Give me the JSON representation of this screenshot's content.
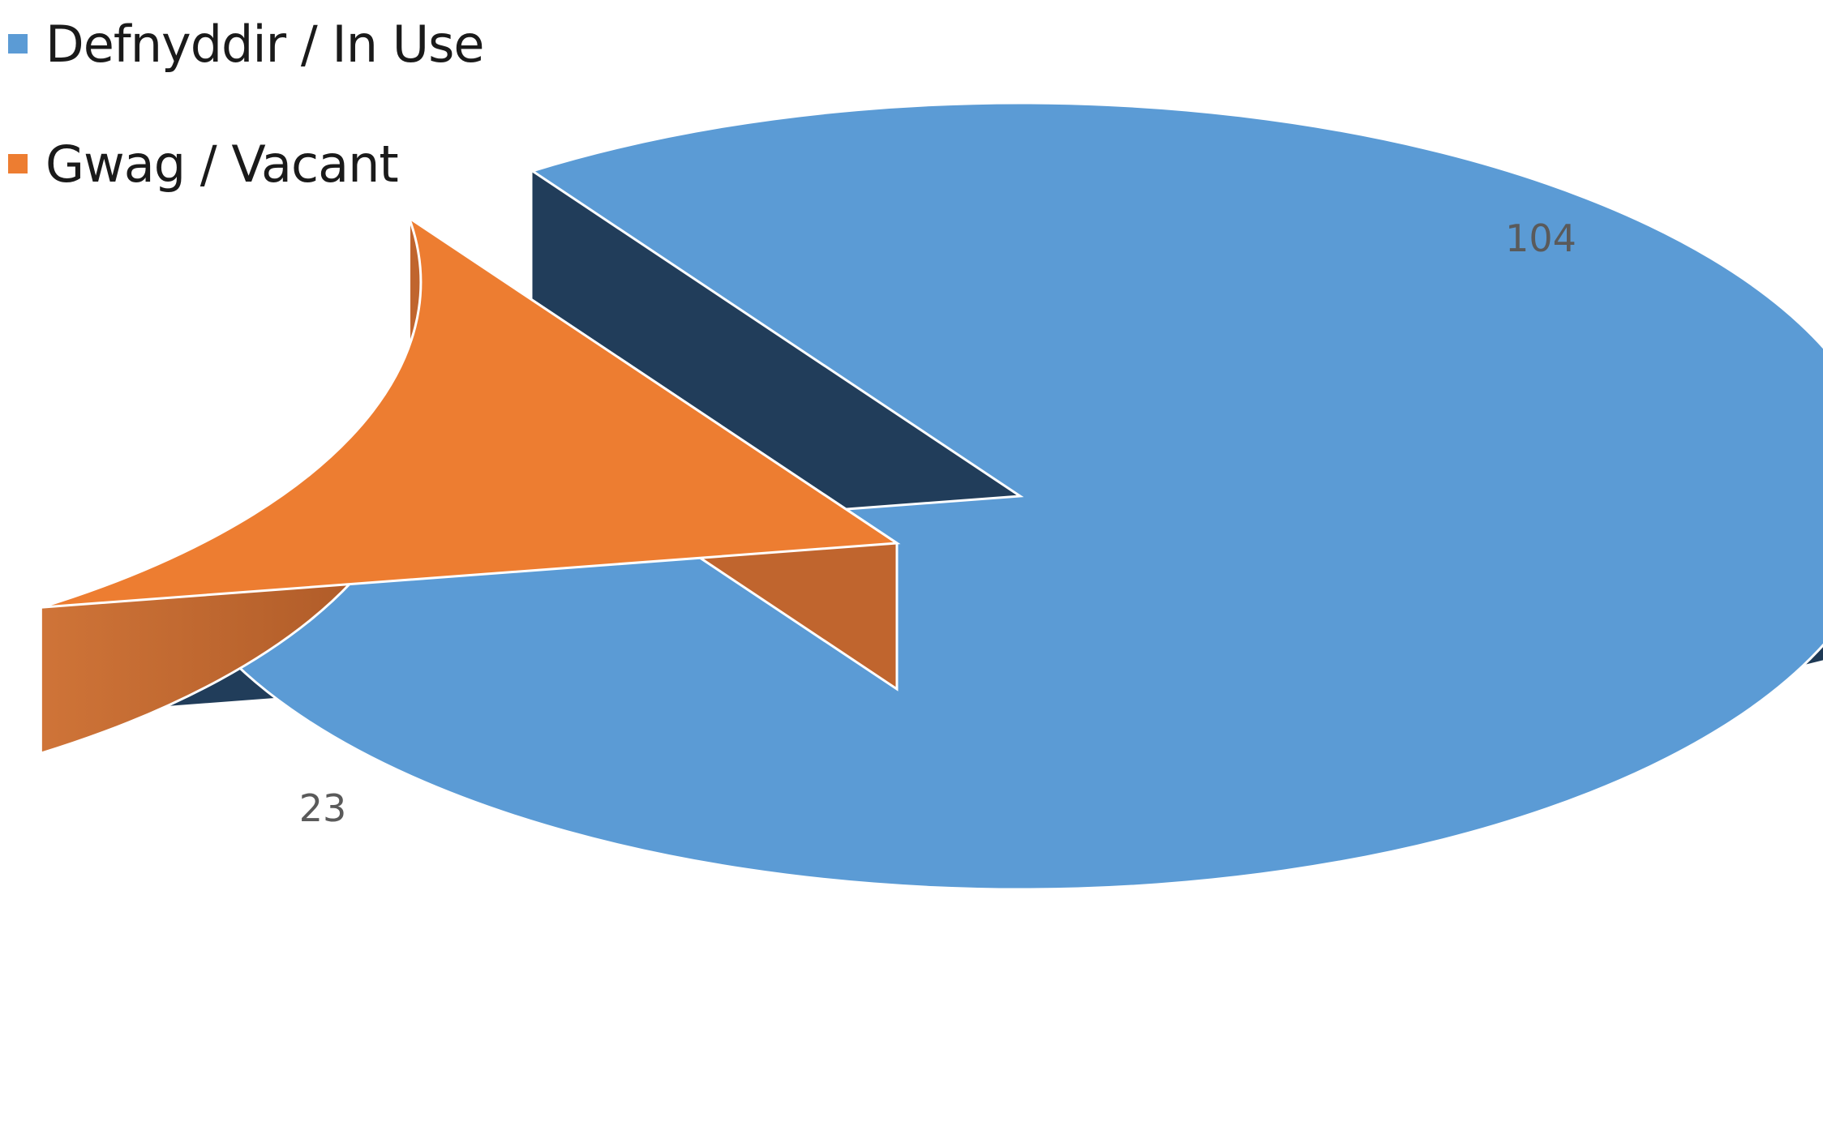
{
  "chart_data": {
    "type": "pie",
    "style": "3d-exploded",
    "title": "",
    "legend_position": "top-left",
    "slices": [
      {
        "label": "Defnyddir / In Use",
        "value": 104,
        "color": "#5B9BD5"
      },
      {
        "label": "Gwag / Vacant",
        "value": 23,
        "color": "#ED7D31"
      }
    ],
    "data_labels": [
      "104",
      "23"
    ]
  }
}
